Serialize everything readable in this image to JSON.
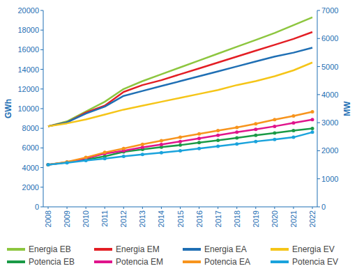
{
  "chart_data": {
    "type": "line",
    "y_label": "GWh",
    "y2_label": "MW",
    "categories": [
      "2008",
      "2009",
      "2010",
      "2011",
      "2012",
      "2013",
      "2014",
      "2015",
      "2016",
      "2017",
      "2018",
      "2019",
      "2020",
      "2021",
      "2022"
    ],
    "ylim": [
      0,
      20000
    ],
    "yticks": [
      0,
      2000,
      4000,
      6000,
      8000,
      10000,
      12000,
      14000,
      16000,
      18000,
      20000
    ],
    "y2lim": [
      0,
      7000
    ],
    "y2ticks": [
      0,
      1000,
      2000,
      3000,
      4000,
      5000,
      6000,
      7000
    ],
    "grid": false,
    "legend": "bottom",
    "series": [
      {
        "name": "Energia EB",
        "color": "#8dc63f",
        "marker": "none",
        "values": [
          8200,
          8700,
          9700,
          10700,
          12000,
          12800,
          13500,
          14200,
          14900,
          15600,
          16300,
          17000,
          17700,
          18500,
          19300
        ]
      },
      {
        "name": "Energia EM",
        "color": "#e31e24",
        "marker": "none",
        "values": [
          8200,
          8600,
          9600,
          10300,
          11700,
          12400,
          12900,
          13500,
          14100,
          14700,
          15300,
          15900,
          16500,
          17100,
          17800
        ]
      },
      {
        "name": "Energia EA",
        "color": "#1f6fb4",
        "marker": "none",
        "values": [
          8200,
          8600,
          9500,
          10200,
          11300,
          11800,
          12300,
          12800,
          13300,
          13800,
          14300,
          14800,
          15300,
          15700,
          16200
        ]
      },
      {
        "name": "Energia EV",
        "color": "#f5c518",
        "marker": "none",
        "values": [
          8200,
          8500,
          8900,
          9400,
          9900,
          10300,
          10700,
          11100,
          11500,
          11900,
          12400,
          12800,
          13300,
          13900,
          14700
        ]
      },
      {
        "name": "Potencia EB",
        "color": "#1a9a46",
        "marker": "circle",
        "axis": "y2",
        "values": [
          1500,
          1590,
          1690,
          1800,
          1960,
          2050,
          2130,
          2200,
          2290,
          2370,
          2460,
          2550,
          2630,
          2720,
          2790
        ]
      },
      {
        "name": "Potencia EM",
        "color": "#e0148c",
        "marker": "circle",
        "axis": "y2",
        "values": [
          1500,
          1590,
          1730,
          1900,
          2000,
          2120,
          2220,
          2330,
          2440,
          2550,
          2660,
          2760,
          2870,
          2990,
          3110
        ]
      },
      {
        "name": "Potencia EA",
        "color": "#f7941d",
        "marker": "circle",
        "axis": "y2",
        "values": [
          1500,
          1600,
          1760,
          1940,
          2080,
          2230,
          2360,
          2480,
          2600,
          2720,
          2830,
          2960,
          3110,
          3240,
          3390
        ]
      },
      {
        "name": "Potencia EV",
        "color": "#1aa3dc",
        "marker": "circle",
        "axis": "y2",
        "values": [
          1500,
          1570,
          1650,
          1720,
          1800,
          1870,
          1930,
          2000,
          2080,
          2160,
          2240,
          2330,
          2400,
          2480,
          2660
        ]
      }
    ]
  }
}
